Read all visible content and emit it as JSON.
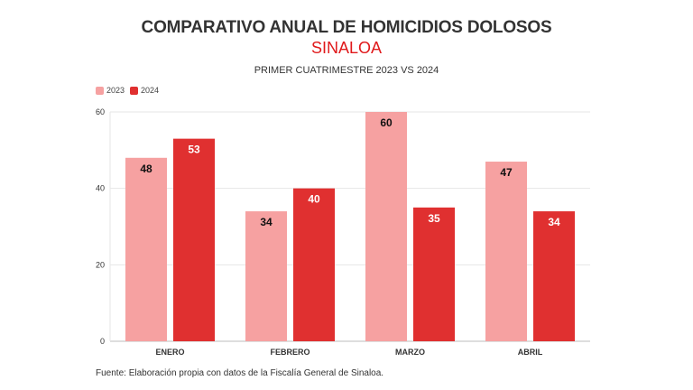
{
  "header": {
    "title": "COMPARATIVO ANUAL DE HOMICIDIOS DOLOSOS",
    "subtitle": "SINALOA",
    "caption": "PRIMER CUATRIMESTRE 2023 VS 2024"
  },
  "colors": {
    "series_2023": "#f6a1a1",
    "series_2024": "#e03030",
    "subtitle": "#e0191b"
  },
  "footer": {
    "source": "Fuente: Elaboración propia con datos de la Fiscalía General de Sinaloa."
  },
  "chart_data": {
    "type": "bar",
    "categories": [
      "ENERO",
      "FEBRERO",
      "MARZO",
      "ABRIL"
    ],
    "series": [
      {
        "name": "2023",
        "values": [
          48,
          34,
          60,
          47
        ]
      },
      {
        "name": "2024",
        "values": [
          53,
          40,
          35,
          34
        ]
      }
    ],
    "ylim": [
      0,
      60
    ],
    "yticks": [
      0,
      20,
      40,
      60
    ],
    "grid": true,
    "legend": "top-left",
    "data_labels": true
  }
}
